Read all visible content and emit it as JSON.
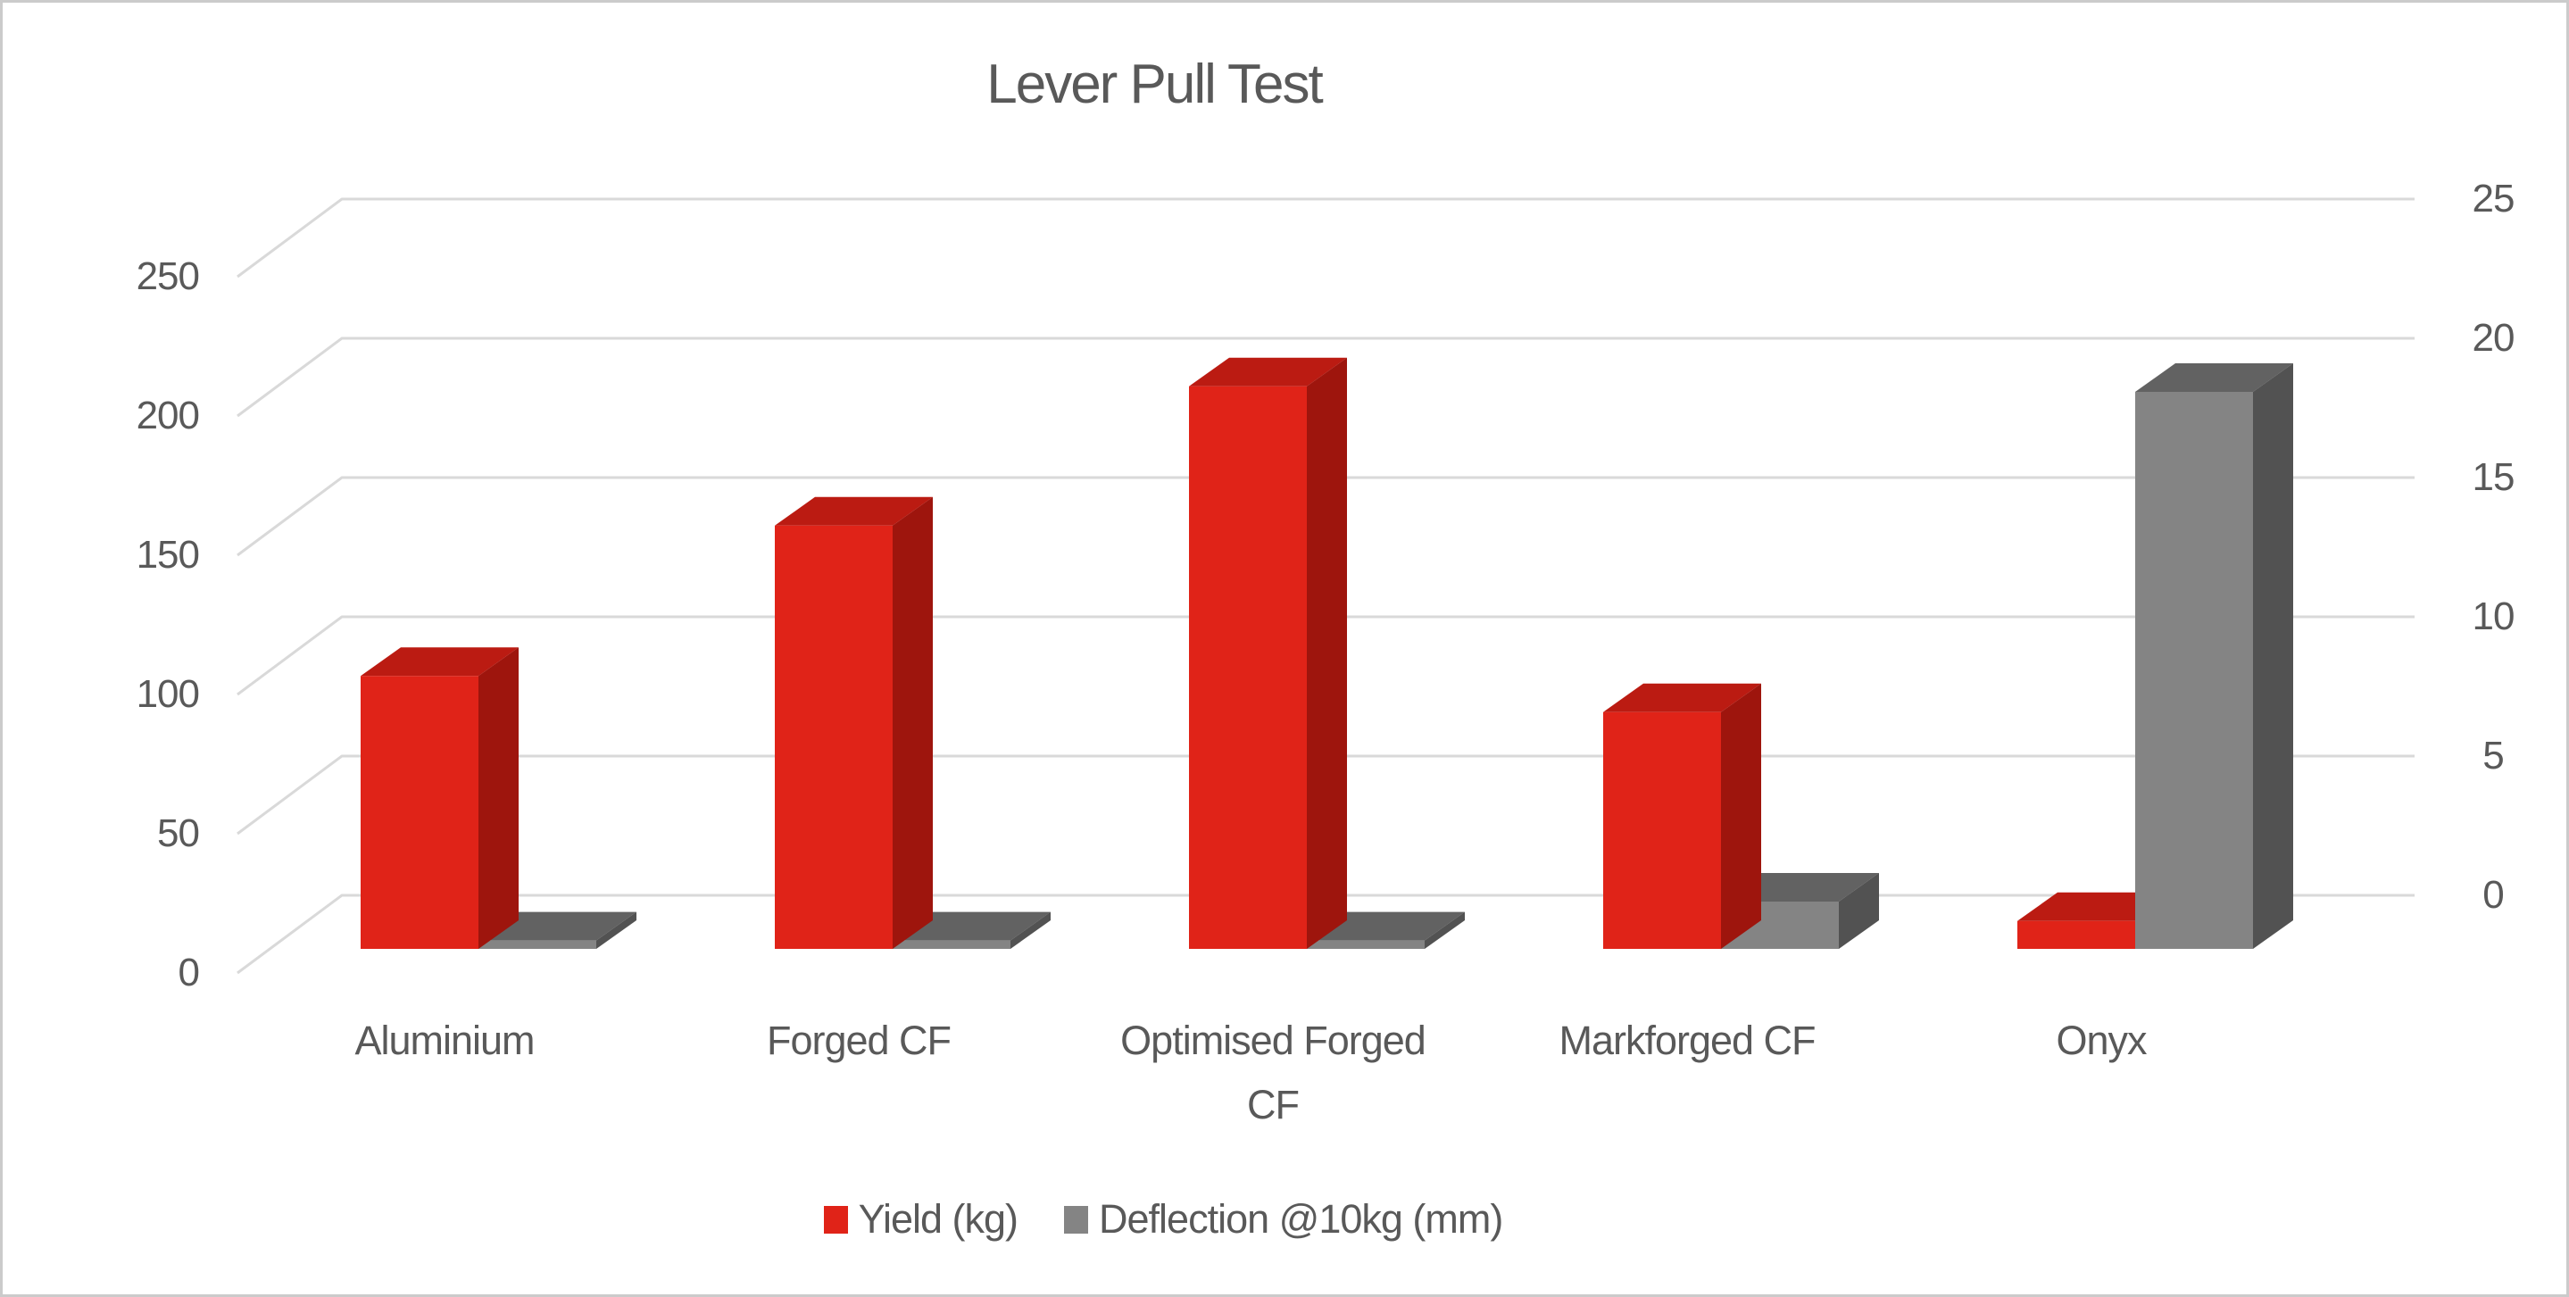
{
  "title": "Lever Pull Test",
  "colors": {
    "text": "#595959",
    "gridline": "#d9d9d9",
    "frame_border": "#cbcbcb",
    "yield_red_front": "#e02318",
    "yield_red_top": "#bb1b12",
    "yield_red_side": "#9e150d",
    "deflection_grey_front": "#848484",
    "deflection_grey_top": "#626262",
    "deflection_grey_side": "#525252"
  },
  "legend": {
    "position": "bottom",
    "items": [
      {
        "label": "Yield (kg)",
        "swatch": "#e02318"
      },
      {
        "label": "Deflection @10kg (mm)",
        "swatch": "#848484"
      }
    ]
  },
  "chart_data": {
    "type": "bar",
    "variant": "3d-clustered-column",
    "title": "Lever Pull Test",
    "categories": [
      "Aluminium",
      "Forged CF",
      "Optimised Forged CF",
      "Markforged CF",
      "Onyx"
    ],
    "series": [
      {
        "name": "Yield (kg)",
        "axis": "left",
        "colors": {
          "front": "#e02318",
          "top": "#bb1b12",
          "side": "#9e150d"
        },
        "values": [
          98,
          152,
          202,
          85,
          10
        ]
      },
      {
        "name": "Deflection @10kg (mm)",
        "axis": "right",
        "colors": {
          "front": "#848484",
          "top": "#626262",
          "side": "#525252"
        },
        "values": [
          0.3,
          0.3,
          0.3,
          1.7,
          20
        ]
      }
    ],
    "left_axis": {
      "ticks": [
        0,
        50,
        100,
        150,
        200,
        250
      ],
      "range": [
        0,
        250
      ]
    },
    "right_axis": {
      "ticks": [
        0,
        5,
        10,
        15,
        20,
        25
      ],
      "range": [
        0,
        25
      ]
    },
    "grid": true,
    "legend_position": "bottom"
  }
}
